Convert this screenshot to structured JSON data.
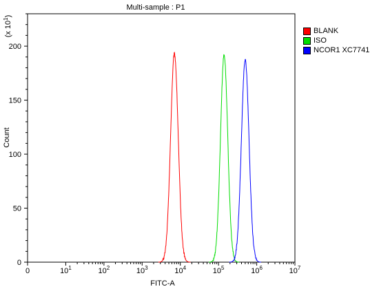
{
  "chart_data": {
    "type": "line",
    "title": "Multi-sample : P1",
    "xlabel": "FITC-A",
    "ylabel": "Count",
    "y_multiplier_label": "(x 10",
    "y_multiplier_exp": "1",
    "x_scale": "log",
    "xlim": [
      0,
      10000000
    ],
    "ylim": [
      0,
      230
    ],
    "x_ticks": [
      {
        "base": "0",
        "exp": ""
      },
      {
        "base": "10",
        "exp": "1"
      },
      {
        "base": "10",
        "exp": "2"
      },
      {
        "base": "10",
        "exp": "3"
      },
      {
        "base": "10",
        "exp": "4"
      },
      {
        "base": "10",
        "exp": "5"
      },
      {
        "base": "10",
        "exp": "6"
      },
      {
        "base": "10",
        "exp": "7"
      }
    ],
    "y_ticks": [
      0,
      50,
      100,
      150,
      200
    ],
    "legend_position": "top-right",
    "series": [
      {
        "name": "BLANK",
        "color": "#ff0000",
        "peak_x": 7000,
        "peak_y": 193,
        "log_width": 0.1
      },
      {
        "name": "ISO",
        "color": "#00dd00",
        "peak_x": 140000,
        "peak_y": 192,
        "log_width": 0.095
      },
      {
        "name": "NCOR1 XC7741",
        "color": "#0000ff",
        "peak_x": 500000,
        "peak_y": 187,
        "log_width": 0.1
      }
    ]
  }
}
